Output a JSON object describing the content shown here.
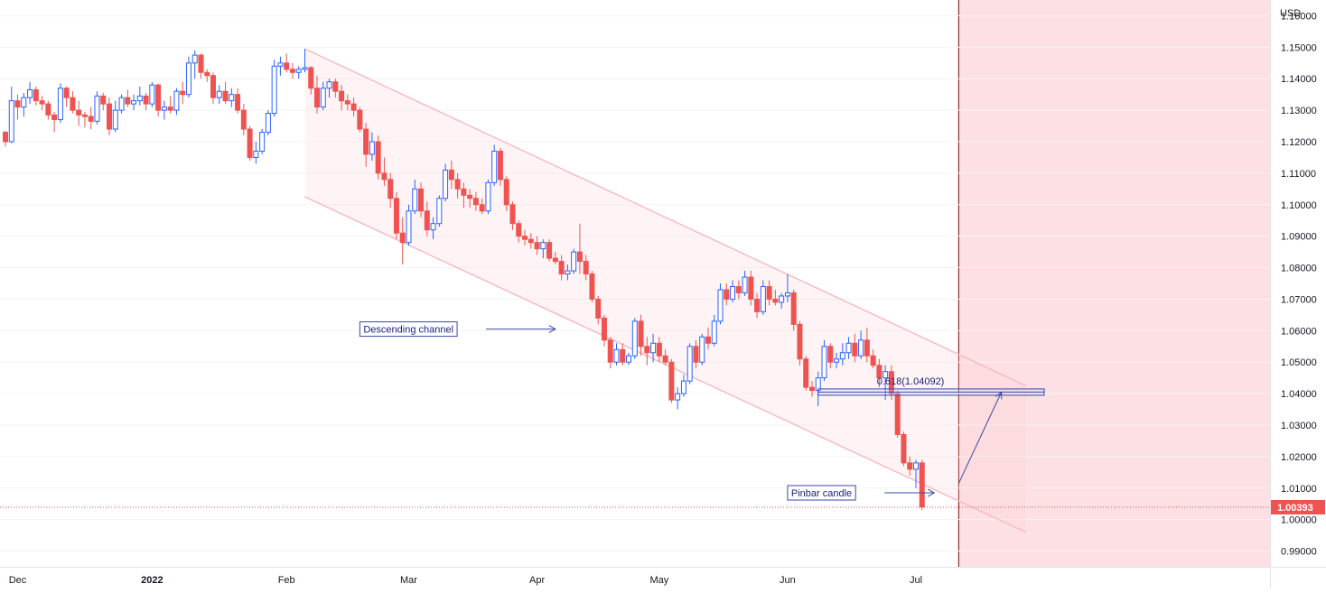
{
  "chart_data": {
    "type": "candlestick",
    "instrument_currency": "USD",
    "last_price_label": "1.00393",
    "last_price": 1.00393,
    "ylim": [
      0.985,
      1.165
    ],
    "y_ticks": [
      {
        "value": 1.16,
        "label": "1.16000"
      },
      {
        "value": 1.15,
        "label": "1.15000"
      },
      {
        "value": 1.14,
        "label": "1.14000"
      },
      {
        "value": 1.13,
        "label": "1.13000"
      },
      {
        "value": 1.12,
        "label": "1.12000"
      },
      {
        "value": 1.11,
        "label": "1.11000"
      },
      {
        "value": 1.1,
        "label": "1.10000"
      },
      {
        "value": 1.09,
        "label": "1.09000"
      },
      {
        "value": 1.08,
        "label": "1.08000"
      },
      {
        "value": 1.07,
        "label": "1.07000"
      },
      {
        "value": 1.06,
        "label": "1.06000"
      },
      {
        "value": 1.05,
        "label": "1.05000"
      },
      {
        "value": 1.04,
        "label": "1.04000"
      },
      {
        "value": 1.03,
        "label": "1.03000"
      },
      {
        "value": 1.02,
        "label": "1.02000"
      },
      {
        "value": 1.01,
        "label": "1.01000"
      },
      {
        "value": 1.0,
        "label": "1.00000"
      },
      {
        "value": 0.99,
        "label": "0.99000"
      }
    ],
    "x_ticks": [
      {
        "index": 2,
        "label": "Dec",
        "bold": false
      },
      {
        "index": 24,
        "label": "2022",
        "bold": true
      },
      {
        "index": 46,
        "label": "Feb",
        "bold": false
      },
      {
        "index": 66,
        "label": "Mar",
        "bold": false
      },
      {
        "index": 87,
        "label": "Apr",
        "bold": false
      },
      {
        "index": 107,
        "label": "May",
        "bold": false
      },
      {
        "index": 128,
        "label": "Jun",
        "bold": false
      },
      {
        "index": 149,
        "label": "Jul",
        "bold": false
      }
    ],
    "forecast_zone_start_index": 156,
    "channel": {
      "upper": [
        {
          "index": 49,
          "price": 1.1495
        },
        {
          "index": 167,
          "price": 1.0425
        }
      ],
      "lower": [
        {
          "index": 49,
          "price": 1.1025
        },
        {
          "index": 167,
          "price": 0.996
        }
      ]
    },
    "fib_level": {
      "label": "0.618(1.04092)",
      "price": 1.04092,
      "from_index": 133,
      "to_index": 170
    },
    "annotations": [
      {
        "text": "Descending channel",
        "index": 58,
        "price": 1.0605,
        "arrow_to_index": 90
      },
      {
        "text": "Pinbar candle",
        "index": 128,
        "price": 1.0085,
        "arrow_to_index": 152
      }
    ],
    "projection": {
      "from_index": 156,
      "from_price": 1.0115,
      "to_index": 163,
      "to_price": 1.0405
    },
    "candles": [
      [
        1.123,
        1.1235,
        1.1185,
        1.12
      ],
      [
        1.12,
        1.1375,
        1.1195,
        1.133
      ],
      [
        1.133,
        1.135,
        1.127,
        1.131
      ],
      [
        1.131,
        1.1355,
        1.128,
        1.134
      ],
      [
        1.134,
        1.139,
        1.132,
        1.1365
      ],
      [
        1.1365,
        1.1375,
        1.1315,
        1.133
      ],
      [
        1.133,
        1.1345,
        1.13,
        1.132
      ],
      [
        1.132,
        1.133,
        1.127,
        1.1285
      ],
      [
        1.1285,
        1.1295,
        1.123,
        1.127
      ],
      [
        1.127,
        1.1385,
        1.126,
        1.137
      ],
      [
        1.137,
        1.1375,
        1.131,
        1.134
      ],
      [
        1.134,
        1.136,
        1.129,
        1.13
      ],
      [
        1.13,
        1.133,
        1.125,
        1.1285
      ],
      [
        1.1285,
        1.1295,
        1.1245,
        1.128
      ],
      [
        1.128,
        1.131,
        1.124,
        1.1265
      ],
      [
        1.1265,
        1.136,
        1.1255,
        1.1345
      ],
      [
        1.1345,
        1.1355,
        1.13,
        1.132
      ],
      [
        1.132,
        1.134,
        1.122,
        1.124
      ],
      [
        1.124,
        1.133,
        1.123,
        1.13
      ],
      [
        1.13,
        1.135,
        1.129,
        1.134
      ],
      [
        1.134,
        1.1365,
        1.131,
        1.132
      ],
      [
        1.132,
        1.135,
        1.13,
        1.133
      ],
      [
        1.133,
        1.1375,
        1.1315,
        1.1345
      ],
      [
        1.1345,
        1.1355,
        1.13,
        1.132
      ],
      [
        1.132,
        1.139,
        1.131,
        1.138
      ],
      [
        1.138,
        1.1385,
        1.128,
        1.13
      ],
      [
        1.13,
        1.133,
        1.127,
        1.131
      ],
      [
        1.131,
        1.1345,
        1.129,
        1.13
      ],
      [
        1.13,
        1.137,
        1.1285,
        1.136
      ],
      [
        1.136,
        1.139,
        1.132,
        1.135
      ],
      [
        1.135,
        1.147,
        1.134,
        1.145
      ],
      [
        1.145,
        1.149,
        1.14,
        1.1475
      ],
      [
        1.1475,
        1.148,
        1.14,
        1.142
      ],
      [
        1.142,
        1.143,
        1.139,
        1.141
      ],
      [
        1.141,
        1.142,
        1.132,
        1.134
      ],
      [
        1.134,
        1.138,
        1.132,
        1.136
      ],
      [
        1.136,
        1.139,
        1.132,
        1.133
      ],
      [
        1.133,
        1.137,
        1.131,
        1.135
      ],
      [
        1.135,
        1.137,
        1.129,
        1.13
      ],
      [
        1.13,
        1.132,
        1.122,
        1.124
      ],
      [
        1.124,
        1.125,
        1.114,
        1.115
      ],
      [
        1.115,
        1.12,
        1.113,
        1.117
      ],
      [
        1.117,
        1.124,
        1.116,
        1.123
      ],
      [
        1.123,
        1.13,
        1.122,
        1.129
      ],
      [
        1.129,
        1.146,
        1.128,
        1.144
      ],
      [
        1.144,
        1.147,
        1.141,
        1.145
      ],
      [
        1.145,
        1.148,
        1.142,
        1.143
      ],
      [
        1.143,
        1.145,
        1.14,
        1.142
      ],
      [
        1.142,
        1.144,
        1.14,
        1.143
      ],
      [
        1.143,
        1.1495,
        1.142,
        1.1435
      ],
      [
        1.1435,
        1.144,
        1.135,
        1.137
      ],
      [
        1.137,
        1.141,
        1.129,
        1.131
      ],
      [
        1.131,
        1.139,
        1.13,
        1.137
      ],
      [
        1.137,
        1.14,
        1.134,
        1.139
      ],
      [
        1.139,
        1.14,
        1.134,
        1.136
      ],
      [
        1.136,
        1.138,
        1.13,
        1.133
      ],
      [
        1.133,
        1.135,
        1.13,
        1.132
      ],
      [
        1.132,
        1.134,
        1.128,
        1.13
      ],
      [
        1.13,
        1.131,
        1.123,
        1.124
      ],
      [
        1.124,
        1.126,
        1.112,
        1.116
      ],
      [
        1.116,
        1.123,
        1.114,
        1.12
      ],
      [
        1.12,
        1.122,
        1.108,
        1.11
      ],
      [
        1.11,
        1.115,
        1.106,
        1.108
      ],
      [
        1.108,
        1.11,
        1.099,
        1.102
      ],
      [
        1.102,
        1.104,
        1.089,
        1.091
      ],
      [
        1.091,
        1.096,
        1.081,
        1.088
      ],
      [
        1.088,
        1.1,
        1.087,
        1.098
      ],
      [
        1.098,
        1.108,
        1.097,
        1.105
      ],
      [
        1.105,
        1.107,
        1.096,
        1.098
      ],
      [
        1.098,
        1.101,
        1.09,
        1.092
      ],
      [
        1.092,
        1.096,
        1.089,
        1.094
      ],
      [
        1.094,
        1.103,
        1.093,
        1.102
      ],
      [
        1.102,
        1.113,
        1.101,
        1.111
      ],
      [
        1.111,
        1.114,
        1.105,
        1.108
      ],
      [
        1.108,
        1.11,
        1.102,
        1.105
      ],
      [
        1.105,
        1.107,
        1.099,
        1.103
      ],
      [
        1.103,
        1.105,
        1.099,
        1.102
      ],
      [
        1.102,
        1.104,
        1.098,
        1.1
      ],
      [
        1.1,
        1.102,
        1.097,
        1.098
      ],
      [
        1.098,
        1.108,
        1.097,
        1.107
      ],
      [
        1.107,
        1.119,
        1.106,
        1.117
      ],
      [
        1.117,
        1.118,
        1.106,
        1.108
      ],
      [
        1.108,
        1.109,
        1.098,
        1.1
      ],
      [
        1.1,
        1.101,
        1.092,
        1.094
      ],
      [
        1.094,
        1.095,
        1.088,
        1.09
      ],
      [
        1.09,
        1.092,
        1.087,
        1.089
      ],
      [
        1.089,
        1.091,
        1.086,
        1.088
      ],
      [
        1.088,
        1.09,
        1.084,
        1.086
      ],
      [
        1.086,
        1.089,
        1.083,
        1.088
      ],
      [
        1.088,
        1.089,
        1.082,
        1.083
      ],
      [
        1.083,
        1.085,
        1.081,
        1.082
      ],
      [
        1.082,
        1.084,
        1.076,
        1.078
      ],
      [
        1.078,
        1.081,
        1.076,
        1.079
      ],
      [
        1.079,
        1.086,
        1.078,
        1.085
      ],
      [
        1.085,
        1.094,
        1.078,
        1.082
      ],
      [
        1.082,
        1.084,
        1.076,
        1.078
      ],
      [
        1.078,
        1.079,
        1.069,
        1.07
      ],
      [
        1.07,
        1.071,
        1.062,
        1.064
      ],
      [
        1.064,
        1.065,
        1.055,
        1.057
      ],
      [
        1.057,
        1.058,
        1.048,
        1.05
      ],
      [
        1.05,
        1.056,
        1.049,
        1.054
      ],
      [
        1.054,
        1.056,
        1.049,
        1.05
      ],
      [
        1.05,
        1.053,
        1.049,
        1.052
      ],
      [
        1.052,
        1.064,
        1.051,
        1.063
      ],
      [
        1.063,
        1.065,
        1.052,
        1.055
      ],
      [
        1.055,
        1.058,
        1.049,
        1.053
      ],
      [
        1.053,
        1.059,
        1.05,
        1.056
      ],
      [
        1.056,
        1.058,
        1.05,
        1.052
      ],
      [
        1.052,
        1.054,
        1.049,
        1.05
      ],
      [
        1.05,
        1.051,
        1.037,
        1.038
      ],
      [
        1.038,
        1.042,
        1.035,
        1.04
      ],
      [
        1.04,
        1.046,
        1.039,
        1.044
      ],
      [
        1.044,
        1.056,
        1.043,
        1.055
      ],
      [
        1.055,
        1.057,
        1.048,
        1.05
      ],
      [
        1.05,
        1.059,
        1.049,
        1.058
      ],
      [
        1.058,
        1.061,
        1.054,
        1.056
      ],
      [
        1.056,
        1.065,
        1.055,
        1.063
      ],
      [
        1.063,
        1.075,
        1.062,
        1.073
      ],
      [
        1.073,
        1.075,
        1.068,
        1.07
      ],
      [
        1.07,
        1.076,
        1.069,
        1.074
      ],
      [
        1.074,
        1.076,
        1.07,
        1.072
      ],
      [
        1.072,
        1.079,
        1.071,
        1.077
      ],
      [
        1.077,
        1.079,
        1.068,
        1.07
      ],
      [
        1.07,
        1.072,
        1.064,
        1.066
      ],
      [
        1.066,
        1.076,
        1.065,
        1.074
      ],
      [
        1.074,
        1.076,
        1.068,
        1.07
      ],
      [
        1.07,
        1.073,
        1.068,
        1.069
      ],
      [
        1.069,
        1.072,
        1.067,
        1.071
      ],
      [
        1.071,
        1.078,
        1.069,
        1.072
      ],
      [
        1.072,
        1.073,
        1.06,
        1.062
      ],
      [
        1.062,
        1.063,
        1.049,
        1.051
      ],
      [
        1.051,
        1.052,
        1.041,
        1.042
      ],
      [
        1.042,
        1.044,
        1.039,
        1.041
      ],
      [
        1.041,
        1.047,
        1.036,
        1.045
      ],
      [
        1.045,
        1.057,
        1.044,
        1.055
      ],
      [
        1.055,
        1.056,
        1.048,
        1.05
      ],
      [
        1.05,
        1.053,
        1.048,
        1.051
      ],
      [
        1.051,
        1.056,
        1.049,
        1.053
      ],
      [
        1.053,
        1.058,
        1.051,
        1.056
      ],
      [
        1.056,
        1.059,
        1.05,
        1.052
      ],
      [
        1.052,
        1.06,
        1.051,
        1.057
      ],
      [
        1.057,
        1.061,
        1.05,
        1.052
      ],
      [
        1.052,
        1.054,
        1.048,
        1.049
      ],
      [
        1.049,
        1.051,
        1.042,
        1.045
      ],
      [
        1.045,
        1.049,
        1.038,
        1.047
      ],
      [
        1.047,
        1.049,
        1.038,
        1.04
      ],
      [
        1.04,
        1.041,
        1.026,
        1.027
      ],
      [
        1.027,
        1.028,
        1.017,
        1.018
      ],
      [
        1.018,
        1.02,
        1.014,
        1.016
      ],
      [
        1.016,
        1.019,
        1.01,
        1.018
      ],
      [
        1.018,
        1.019,
        1.003,
        1.004
      ]
    ]
  }
}
